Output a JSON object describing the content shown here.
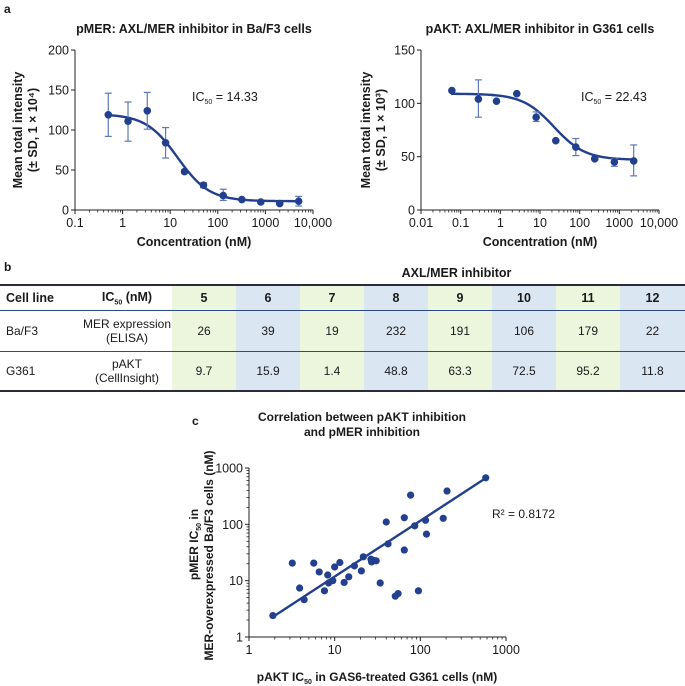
{
  "panels": {
    "a": "a",
    "b": "b",
    "c": "c"
  },
  "chart_data": [
    {
      "id": "pmer",
      "type": "scatter",
      "title": "pMER: AXL/MER inhibitor in Ba/F3 cells",
      "xlabel": "Concentration (nM)",
      "ylabel_line1": "Mean total intensity",
      "ylabel_line2": "(± SD, 1 × 10⁴)",
      "xscale": "log",
      "xlim": [
        0.1,
        10000
      ],
      "ylim": [
        0,
        200
      ],
      "xticks": [
        0.1,
        1,
        10,
        100,
        1000,
        10000
      ],
      "xtick_labels": [
        "0.1",
        "1",
        "10",
        "100",
        "1000",
        "10,000"
      ],
      "yticks": [
        0,
        50,
        100,
        150,
        200
      ],
      "ytick_labels": [
        "0",
        "50",
        "100",
        "150",
        "200"
      ],
      "annotation": {
        "label": "IC",
        "sub": "50",
        "value": " = 14.33"
      },
      "ic50": 14.33,
      "fit": {
        "top": 120,
        "bottom": 11,
        "hill": 1.3
      },
      "points": [
        {
          "x": 0.5,
          "y": 119,
          "lo": 92,
          "hi": 146
        },
        {
          "x": 1.3,
          "y": 111,
          "lo": 86,
          "hi": 135
        },
        {
          "x": 3.3,
          "y": 124,
          "lo": 101,
          "hi": 147
        },
        {
          "x": 8,
          "y": 84,
          "lo": 65,
          "hi": 103
        },
        {
          "x": 20,
          "y": 48,
          "lo": 46,
          "hi": 50
        },
        {
          "x": 50,
          "y": 31,
          "lo": 28,
          "hi": 34
        },
        {
          "x": 130,
          "y": 18,
          "lo": 12,
          "hi": 26
        },
        {
          "x": 320,
          "y": 13,
          "lo": 12,
          "hi": 14
        },
        {
          "x": 800,
          "y": 10,
          "lo": 9,
          "hi": 11
        },
        {
          "x": 2000,
          "y": 8,
          "lo": 7,
          "hi": 9
        },
        {
          "x": 5000,
          "y": 11,
          "lo": 5,
          "hi": 17
        }
      ]
    },
    {
      "id": "pakt",
      "type": "scatter",
      "title": "pAKT: AXL/MER inhibitor in G361 cells",
      "xlabel": "Concentration (nM)",
      "ylabel_line1": "Mean total intensity",
      "ylabel_line2": "(± SD, 1 × 10³)",
      "xscale": "log",
      "xlim": [
        0.01,
        10000
      ],
      "ylim": [
        0,
        150
      ],
      "xticks": [
        0.01,
        0.1,
        1,
        10,
        100,
        1000,
        10000
      ],
      "xtick_labels": [
        "0.01",
        "0.1",
        "1",
        "10",
        "100",
        "1000",
        "10,000"
      ],
      "yticks": [
        0,
        50,
        100,
        150
      ],
      "ytick_labels": [
        "0",
        "50",
        "100",
        "150"
      ],
      "annotation": {
        "label": "IC",
        "sub": "50",
        "value": " = 22.43"
      },
      "ic50": 22.43,
      "fit": {
        "top": 109,
        "bottom": 47,
        "hill": 1.1
      },
      "points": [
        {
          "x": 0.06,
          "y": 112,
          "lo": 112,
          "hi": 112
        },
        {
          "x": 0.28,
          "y": 104,
          "lo": 87,
          "hi": 122
        },
        {
          "x": 0.8,
          "y": 102,
          "lo": 102,
          "hi": 102
        },
        {
          "x": 2.6,
          "y": 109,
          "lo": 109,
          "hi": 109
        },
        {
          "x": 8,
          "y": 87,
          "lo": 83,
          "hi": 92
        },
        {
          "x": 25,
          "y": 65,
          "lo": 64,
          "hi": 66
        },
        {
          "x": 80,
          "y": 59,
          "lo": 51,
          "hi": 67
        },
        {
          "x": 240,
          "y": 48,
          "lo": 47,
          "hi": 49
        },
        {
          "x": 750,
          "y": 45,
          "lo": 41,
          "hi": 48
        },
        {
          "x": 2300,
          "y": 46,
          "lo": 32,
          "hi": 61
        }
      ]
    },
    {
      "id": "correlation",
      "type": "scatter",
      "title_line1": "Correlation between pAKT inhibition",
      "title_line2": "and pMER inhibition",
      "xlabel_pre": "pAKT IC",
      "xlabel_sub": "50",
      "xlabel_post": " in GAS6-treated G361 cells (nM)",
      "ylabel_line1_pre": "pMER IC",
      "ylabel_line1_sub": "50",
      "ylabel_line1_post": " in",
      "ylabel_line2": "MER-overexpressed Ba/F3 cells (nM)",
      "xscale": "log",
      "yscale": "log",
      "xlim": [
        1,
        1000
      ],
      "ylim": [
        1,
        1000
      ],
      "xticks": [
        1,
        10,
        100,
        1000
      ],
      "xtick_labels": [
        "1",
        "10",
        "100",
        "1000"
      ],
      "yticks": [
        1,
        10,
        100,
        1000
      ],
      "ytick_labels": [
        "1",
        "10",
        "100",
        "1000"
      ],
      "annotation": "R² = 0.8172",
      "r_squared": 0.8172,
      "regression": {
        "x": [
          2,
          580
        ],
        "y": [
          2.4,
          660
        ]
      },
      "points": [
        [
          1.9,
          2.4
        ],
        [
          3.2,
          20.5
        ],
        [
          3.9,
          7.4
        ],
        [
          4.4,
          4.6
        ],
        [
          5.7,
          20.5
        ],
        [
          6.6,
          14.3
        ],
        [
          7.6,
          6.6
        ],
        [
          8.3,
          12.6
        ],
        [
          8.5,
          9.1
        ],
        [
          9.5,
          10
        ],
        [
          10,
          17.5
        ],
        [
          11.5,
          21
        ],
        [
          12.9,
          9.3
        ],
        [
          14.6,
          11.7
        ],
        [
          17,
          18.3
        ],
        [
          21.6,
          26.5
        ],
        [
          20.5,
          14.9
        ],
        [
          26.5,
          24
        ],
        [
          27,
          21.5
        ],
        [
          28.5,
          23
        ],
        [
          30.5,
          22.5
        ],
        [
          34,
          9.1
        ],
        [
          40,
          110
        ],
        [
          42,
          45
        ],
        [
          51,
          5.3
        ],
        [
          55,
          5.9
        ],
        [
          65,
          35
        ],
        [
          65,
          131
        ],
        [
          77,
          330
        ],
        [
          86,
          94
        ],
        [
          95,
          6.6
        ],
        [
          115,
          118
        ],
        [
          118,
          67
        ],
        [
          185,
          128
        ],
        [
          205,
          390
        ],
        [
          580,
          670
        ]
      ]
    }
  ],
  "table": {
    "title": "AXL/MER inhibitor",
    "header": {
      "cell_line": "Cell line",
      "ic50_pre": "IC",
      "ic50_sub": "50",
      "ic50_post": " (nM)",
      "compounds": [
        "5",
        "6",
        "7",
        "8",
        "9",
        "10",
        "11",
        "12"
      ]
    },
    "rows": [
      {
        "cell_line": "Ba/F3",
        "assay_line1": "MER expression",
        "assay_line2": "(ELISA)",
        "values": [
          "26",
          "39",
          "19",
          "232",
          "191",
          "106",
          "179",
          "22"
        ]
      },
      {
        "cell_line": "G361",
        "assay_line1": "pAKT",
        "assay_line2": "(CellInsight)",
        "values": [
          "9.7",
          "15.9",
          "1.4",
          "48.8",
          "63.3",
          "72.5",
          "95.2",
          "11.8"
        ]
      }
    ],
    "column_colors": [
      "#ecf6dd",
      "#dbe6f3"
    ]
  },
  "colors": {
    "series": "#23408e",
    "errorbar": "#5d79b6",
    "axis": "#222222"
  }
}
